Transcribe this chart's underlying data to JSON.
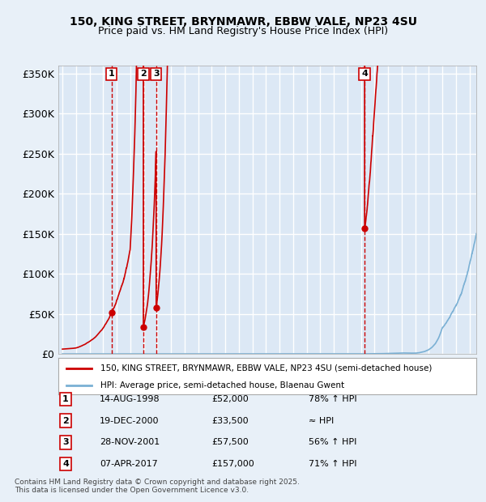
{
  "title1": "150, KING STREET, BRYNMAWR, EBBW VALE, NP23 4SU",
  "title2": "Price paid vs. HM Land Registry's House Price Index (HPI)",
  "ylim": [
    0,
    360000
  ],
  "yticks": [
    0,
    50000,
    100000,
    150000,
    200000,
    250000,
    300000,
    350000
  ],
  "ytick_labels": [
    "£0",
    "£50K",
    "£100K",
    "£150K",
    "£200K",
    "£250K",
    "£300K",
    "£350K"
  ],
  "bg_color": "#e8f0f8",
  "plot_bg_color": "#dce8f5",
  "grid_color": "#ffffff",
  "red_line_color": "#cc0000",
  "blue_line_color": "#7ab0d4",
  "sale_marker_color": "#cc0000",
  "vline_color": "#cc0000",
  "legend1": "150, KING STREET, BRYNMAWR, EBBW VALE, NP23 4SU (semi-detached house)",
  "legend2": "HPI: Average price, semi-detached house, Blaenau Gwent",
  "transactions": [
    {
      "num": 1,
      "date": "14-AUG-1998",
      "price": 52000,
      "pct": "78%",
      "dir": "↑",
      "rel": "HPI",
      "year": 1998.62
    },
    {
      "num": 2,
      "date": "19-DEC-2000",
      "price": 33500,
      "pct": "≈",
      "dir": "",
      "rel": "HPI",
      "year": 2000.96
    },
    {
      "num": 3,
      "date": "28-NOV-2001",
      "price": 57500,
      "pct": "56%",
      "dir": "↑",
      "rel": "HPI",
      "year": 2001.91
    },
    {
      "num": 4,
      "date": "07-APR-2017",
      "price": 157000,
      "pct": "71%",
      "dir": "↑",
      "rel": "HPI",
      "year": 2017.27
    }
  ],
  "footer1": "Contains HM Land Registry data © Crown copyright and database right 2025.",
  "footer2": "This data is licensed under the Open Government Licence v3.0.",
  "x_start_year": 1995,
  "x_end_year": 2025,
  "n_points": 3660
}
